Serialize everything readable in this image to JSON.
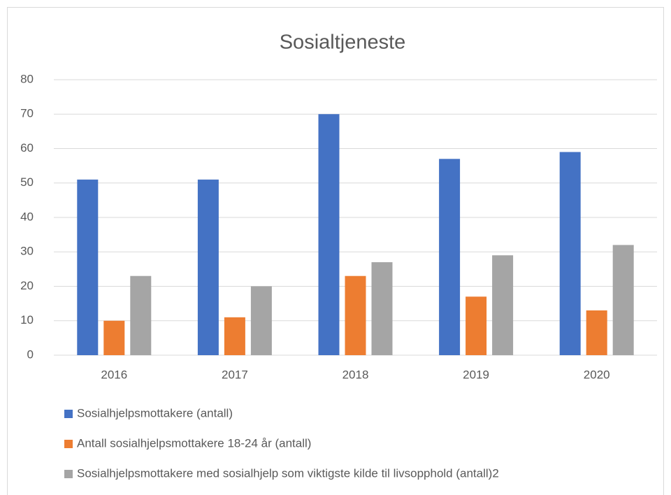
{
  "chart_data": {
    "type": "bar",
    "title": "Sosialtjeneste",
    "categories": [
      "2016",
      "2017",
      "2018",
      "2019",
      "2020"
    ],
    "series": [
      {
        "name": "Sosialhjelpsmottakere (antall)",
        "color": "#4472c4",
        "values": [
          51,
          51,
          70,
          57,
          59
        ]
      },
      {
        "name": "Antall sosialhjelpsmottakere 18-24 år (antall)",
        "color": "#ed7d31",
        "values": [
          10,
          11,
          23,
          17,
          13
        ]
      },
      {
        "name": "Sosialhjelpsmottakere med sosialhjelp som viktigste kilde til livsopphold (antall)2",
        "color": "#a5a5a5",
        "values": [
          23,
          20,
          27,
          29,
          32
        ]
      }
    ],
    "ylim": [
      0,
      80
    ],
    "yticks": [
      0,
      10,
      20,
      30,
      40,
      50,
      60,
      70,
      80
    ],
    "grid": true,
    "legend": "bottom"
  }
}
